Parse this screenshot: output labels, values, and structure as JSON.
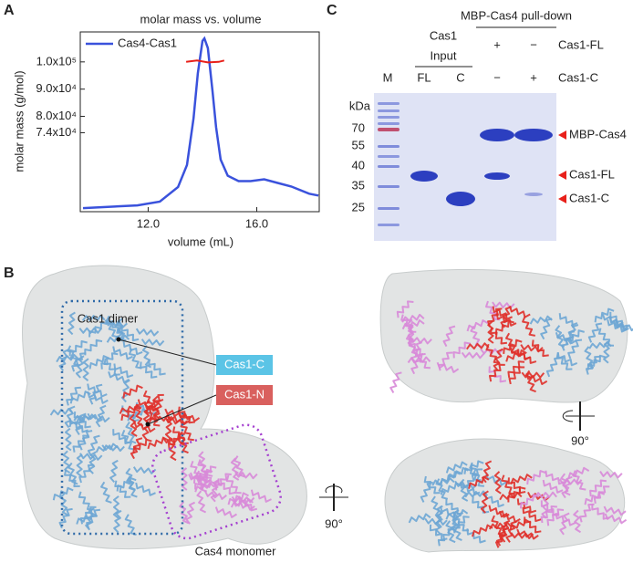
{
  "chart_data": {
    "type": "line",
    "title": "molar mass vs. volume",
    "x_label": "volume (mL)",
    "y_label": "molar mass (g/mol)",
    "xlim": [
      9.5,
      18.3
    ],
    "xticks": [
      {
        "value": 12,
        "label": "12.0"
      },
      {
        "value": 16,
        "label": "16.0"
      }
    ],
    "ylim": [
      45000,
      111000
    ],
    "yticks": [
      {
        "value": 74000,
        "label": "7.4x10⁴"
      },
      {
        "value": 80000,
        "label": "8.0x10⁴"
      },
      {
        "value": 90000,
        "label": "9.0x10⁴"
      },
      {
        "value": 100000,
        "label": "1.0x10⁵"
      }
    ],
    "y2lim": [
      0,
      100
    ],
    "legend": "upper left",
    "series": [
      {
        "name": "Cas4-Cas1",
        "color": "#3a52dc",
        "axis": "y2",
        "x": [
          9.6,
          11.6,
          12.43,
          13.1,
          13.43,
          13.67,
          13.83,
          14.0,
          14.07,
          14.2,
          14.37,
          14.5,
          14.67,
          14.93,
          15.33,
          15.77,
          16.27,
          16.77,
          17.27,
          17.93,
          18.27
        ],
        "values": [
          2,
          3.5,
          5.6,
          13.7,
          26,
          52,
          77,
          95,
          96.4,
          91,
          67,
          47,
          29,
          20,
          17,
          17,
          18,
          16,
          14,
          10,
          9
        ]
      },
      {
        "color": "#e8201a",
        "x": [
          13.4,
          13.8,
          14.2,
          14.6,
          14.8
        ],
        "values": [
          100000,
          100500,
          99800,
          100000,
          100500
        ]
      }
    ]
  },
  "panel_labels": [
    "A",
    "B",
    "C"
  ],
  "gel": {
    "input_group": [
      "Cas1",
      "Input"
    ],
    "pulldown_group": "MBP-Cas4 pull-down",
    "rows": [
      {
        "label": "Cas1-FL",
        "signs": [
          "+",
          "−"
        ]
      },
      {
        "label": "Cas1-C",
        "signs": [
          "−",
          "+"
        ]
      }
    ],
    "lanes": [
      "M",
      "FL",
      "C"
    ],
    "unit": "kDa",
    "markers": [
      "70",
      "55",
      "40",
      "35",
      "25"
    ],
    "bands": [
      "MBP-Cas4",
      "Cas1-FL",
      "Cas1-C"
    ]
  },
  "structure": {
    "dimer": "Cas1 dimer",
    "cas1_c": "Cas1-C",
    "cas1_n": "Cas1-N",
    "monomer": "Cas4 monomer",
    "rotations": [
      "90°",
      "90°"
    ]
  }
}
